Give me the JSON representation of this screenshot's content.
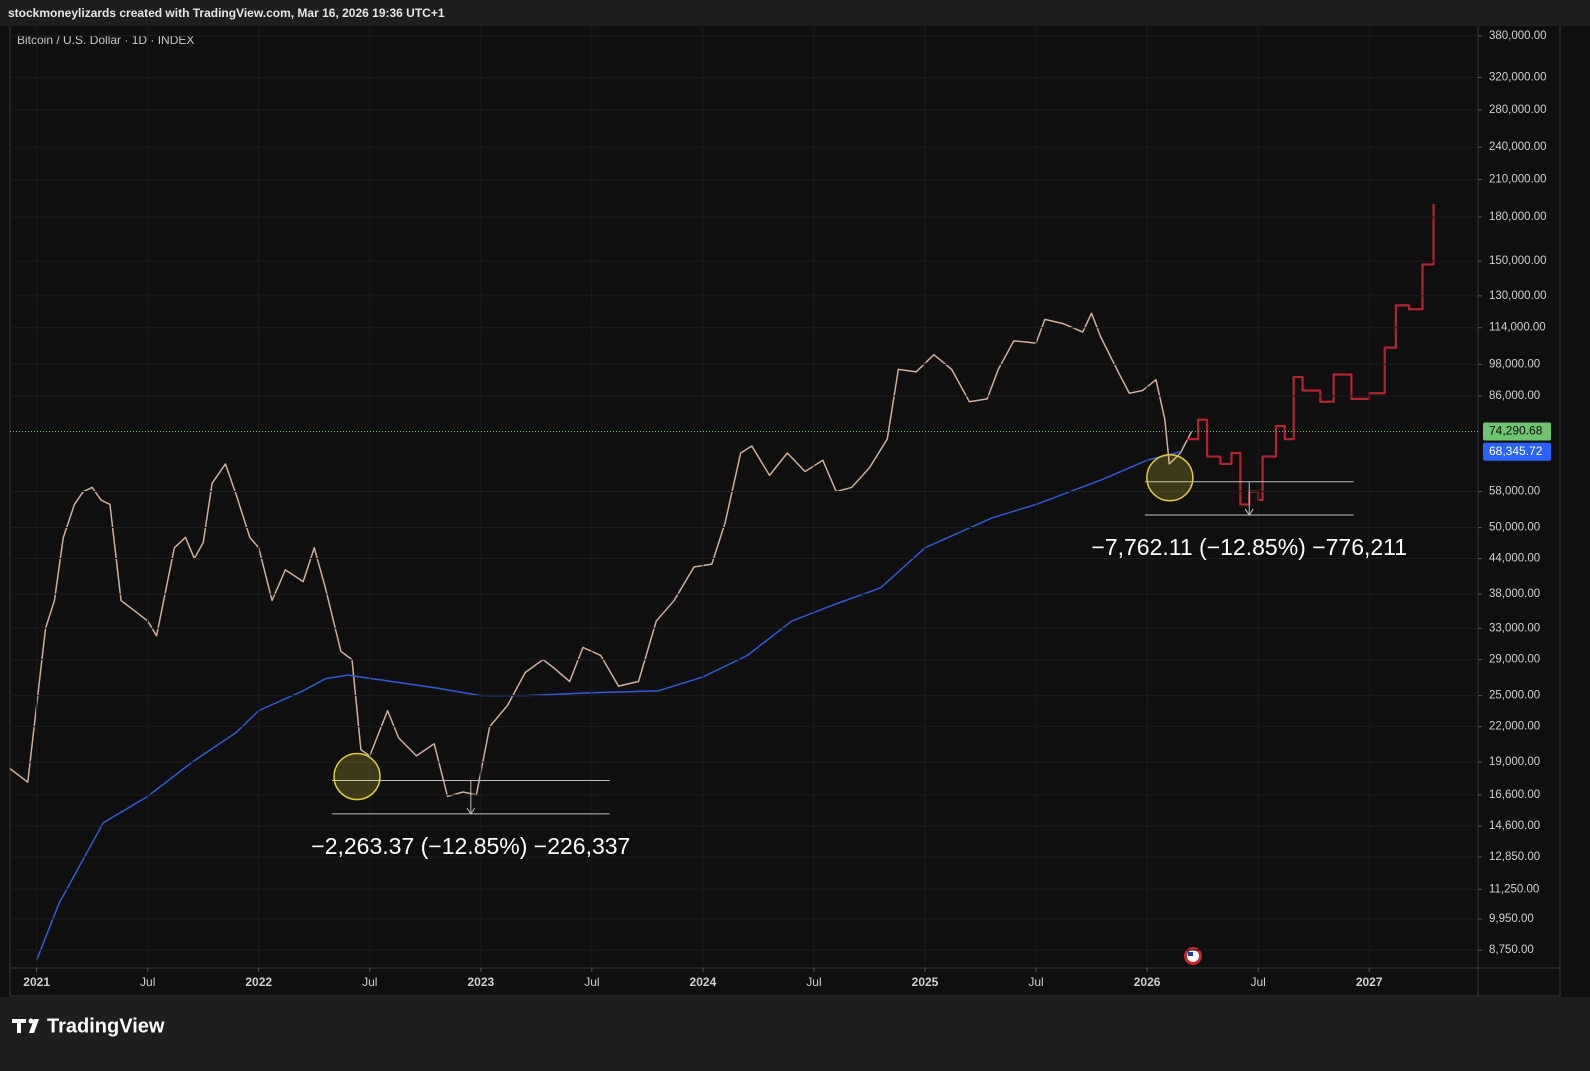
{
  "header": "stockmoneylizards created with TradingView.com, Mar 16, 2026 19:36 UTC+1",
  "footer": "TradingView",
  "chart_data": {
    "type": "line",
    "title": "Bitcoin / U.S. Dollar · 1D · INDEX",
    "log_scale": true,
    "grid": true,
    "xlim": [
      2020.88,
      2027.49
    ],
    "ylim": [
      8130,
      394000
    ],
    "xticks": [
      {
        "value": 2021,
        "label": "2021"
      },
      {
        "value": 2021.5,
        "label": "Jul"
      },
      {
        "value": 2022,
        "label": "2022"
      },
      {
        "value": 2022.5,
        "label": "Jul"
      },
      {
        "value": 2023,
        "label": "2023"
      },
      {
        "value": 2023.5,
        "label": "Jul"
      },
      {
        "value": 2024,
        "label": "2024"
      },
      {
        "value": 2024.5,
        "label": "Jul"
      },
      {
        "value": 2025,
        "label": "2025"
      },
      {
        "value": 2025.5,
        "label": "Jul"
      },
      {
        "value": 2026,
        "label": "2026"
      },
      {
        "value": 2026.5,
        "label": "Jul"
      },
      {
        "value": 2027,
        "label": "2027"
      }
    ],
    "yticks": [
      {
        "value": 380000,
        "label": "380,000.00"
      },
      {
        "value": 320000,
        "label": "320,000.00"
      },
      {
        "value": 280000,
        "label": "280,000.00"
      },
      {
        "value": 240000,
        "label": "240,000.00"
      },
      {
        "value": 210000,
        "label": "210,000.00"
      },
      {
        "value": 180000,
        "label": "180,000.00"
      },
      {
        "value": 150000,
        "label": "150,000.00"
      },
      {
        "value": 130000,
        "label": "130,000.00"
      },
      {
        "value": 114000,
        "label": "114,000.00"
      },
      {
        "value": 98000,
        "label": "98,000.00"
      },
      {
        "value": 86000,
        "label": "86,000.00"
      },
      {
        "value": 58000,
        "label": "58,000.00"
      },
      {
        "value": 50000,
        "label": "50,000.00"
      },
      {
        "value": 44000,
        "label": "44,000.00"
      },
      {
        "value": 38000,
        "label": "38,000.00"
      },
      {
        "value": 33000,
        "label": "33,000.00"
      },
      {
        "value": 29000,
        "label": "29,000.00"
      },
      {
        "value": 25000,
        "label": "25,000.00"
      },
      {
        "value": 22000,
        "label": "22,000.00"
      },
      {
        "value": 19000,
        "label": "19,000.00"
      },
      {
        "value": 16600,
        "label": "16,600.00"
      },
      {
        "value": 14600,
        "label": "14,600.00"
      },
      {
        "value": 12850,
        "label": "12,850.00"
      },
      {
        "value": 11250,
        "label": "11,250.00"
      },
      {
        "value": 9950,
        "label": "9,950.00"
      },
      {
        "value": 8750,
        "label": "8,750.00"
      }
    ],
    "series": [
      {
        "color": "#cfae9c",
        "x": [
          2020.88,
          2020.96,
          2021.04,
          2021.08,
          2021.12,
          2021.17,
          2021.21,
          2021.25,
          2021.29,
          2021.33,
          2021.38,
          2021.46,
          2021.5,
          2021.54,
          2021.62,
          2021.67,
          2021.71,
          2021.75,
          2021.79,
          2021.85,
          2021.9,
          2021.96,
          2022.0,
          2022.06,
          2022.12,
          2022.2,
          2022.25,
          2022.3,
          2022.37,
          2022.42,
          2022.46,
          2022.5,
          2022.58,
          2022.63,
          2022.71,
          2022.79,
          2022.85,
          2022.92,
          2022.98,
          2023.04,
          2023.12,
          2023.2,
          2023.28,
          2023.33,
          2023.4,
          2023.46,
          2023.54,
          2023.62,
          2023.71,
          2023.79,
          2023.87,
          2023.96,
          2024.04,
          2024.1,
          2024.17,
          2024.22,
          2024.3,
          2024.38,
          2024.46,
          2024.54,
          2024.6,
          2024.67,
          2024.75,
          2024.83,
          2024.88,
          2024.96,
          2025.04,
          2025.12,
          2025.2,
          2025.28,
          2025.33,
          2025.4,
          2025.5,
          2025.54,
          2025.62,
          2025.71,
          2025.75,
          2025.79,
          2025.87,
          2025.92,
          2025.98,
          2026.04,
          2026.08,
          2026.1,
          2026.15,
          2026.2
        ],
        "values": [
          18500,
          17500,
          33000,
          37000,
          48000,
          55000,
          58000,
          59000,
          56000,
          55000,
          37000,
          35000,
          34000,
          32000,
          46000,
          48000,
          44000,
          47000,
          60000,
          65000,
          57000,
          48000,
          46000,
          37000,
          42000,
          40000,
          46000,
          39000,
          30000,
          29000,
          20000,
          19500,
          23500,
          21000,
          19500,
          20500,
          16500,
          16800,
          16600,
          22000,
          24000,
          27500,
          29000,
          28000,
          26500,
          30500,
          29500,
          26000,
          26500,
          34000,
          37000,
          42500,
          43000,
          51000,
          68000,
          70000,
          62000,
          68000,
          63000,
          66000,
          58000,
          59000,
          64000,
          72000,
          96000,
          95000,
          102000,
          96000,
          84000,
          85000,
          96000,
          108000,
          107000,
          118000,
          116000,
          112000,
          121000,
          110000,
          95000,
          87000,
          88000,
          92000,
          78000,
          65000,
          68000,
          74290.68
        ]
      },
      {
        "color": "#2f5bd8",
        "x": [
          2021.0,
          2021.1,
          2021.3,
          2021.5,
          2021.7,
          2021.9,
          2022.0,
          2022.2,
          2022.3,
          2022.4,
          2022.6,
          2022.8,
          2023.0,
          2023.2,
          2023.5,
          2023.8,
          2024.0,
          2024.2,
          2024.4,
          2024.6,
          2024.8,
          2025.0,
          2025.3,
          2025.5,
          2025.8,
          2026.0,
          2026.15
        ],
        "values": [
          8400,
          10600,
          14800,
          16500,
          19000,
          21500,
          23500,
          25500,
          26800,
          27200,
          26500,
          25800,
          25000,
          25000,
          25300,
          25500,
          27000,
          29500,
          34000,
          36500,
          39000,
          46000,
          52000,
          55000,
          61000,
          66000,
          68345.72
        ]
      },
      {
        "color": "#b5232f",
        "step": true,
        "x": [
          2026.18,
          2026.23,
          2026.27,
          2026.33,
          2026.38,
          2026.42,
          2026.46,
          2026.5,
          2026.52,
          2026.58,
          2026.62,
          2026.66,
          2026.7,
          2026.78,
          2026.84,
          2026.92,
          2027.0,
          2027.07,
          2027.12,
          2027.18,
          2027.24,
          2027.29
        ],
        "values": [
          72000,
          78000,
          67000,
          65000,
          68000,
          55000,
          58000,
          56000,
          67000,
          76000,
          72000,
          93000,
          88000,
          84000,
          94000,
          85000,
          87000,
          105000,
          125000,
          123000,
          148000,
          190000
        ]
      }
    ],
    "price_labels": [
      {
        "value": 74290.68,
        "label": "74,290.68",
        "color": "#6fc46f"
      },
      {
        "value": 68345.72,
        "label": "68,345.72",
        "color": "#2962ff"
      }
    ],
    "measures": [
      {
        "label": "−2,263.37 (−12.85%) −226,337",
        "xrange": [
          2022.33,
          2023.58
        ],
        "from": 17614,
        "to": 15350.63
      },
      {
        "label": "−7,762.11 (−12.85%) −776,211",
        "xrange": [
          2025.99,
          2026.93
        ],
        "from": 60405,
        "to": 52642.89
      }
    ]
  }
}
